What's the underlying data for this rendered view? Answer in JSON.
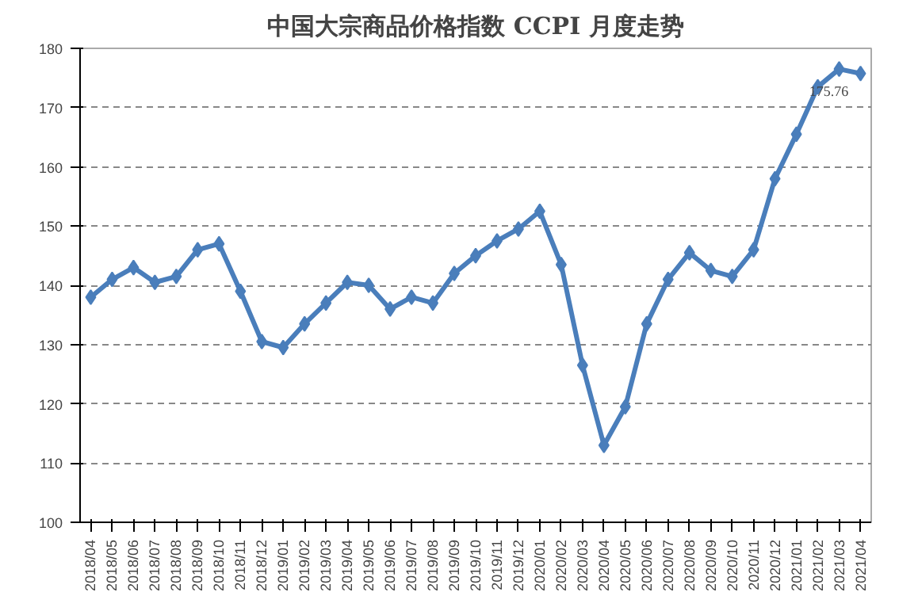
{
  "chart_data": {
    "type": "line",
    "title": "中国大宗商品价格指数 CCPI 月度走势",
    "categories": [
      "2018/04",
      "2018/05",
      "2018/06",
      "2018/07",
      "2018/08",
      "2018/09",
      "2018/10",
      "2018/11",
      "2018/12",
      "2019/01",
      "2019/02",
      "2019/03",
      "2019/04",
      "2019/05",
      "2019/06",
      "2019/07",
      "2019/08",
      "2019/09",
      "2019/10",
      "2019/11",
      "2019/12",
      "2020/01",
      "2020/02",
      "2020/03",
      "2020/04",
      "2020/05",
      "2020/06",
      "2020/07",
      "2020/08",
      "2020/09",
      "2020/10",
      "2020/11",
      "2020/12",
      "2021/01",
      "2021/02",
      "2021/03",
      "2021/04"
    ],
    "series": [
      {
        "color": "#4a7ebb",
        "values": [
          138,
          141,
          143,
          140.5,
          141.5,
          146,
          147,
          139,
          130.5,
          129.5,
          133.5,
          137,
          140.5,
          140,
          136,
          138,
          137,
          142,
          145,
          147.5,
          149.5,
          152.5,
          143.5,
          126.5,
          113,
          119.5,
          133.5,
          141,
          145.5,
          142.5,
          141.5,
          146,
          158,
          165.5,
          173.5,
          176.5,
          175.76
        ],
        "value_labels": [
          null,
          null,
          null,
          null,
          null,
          null,
          null,
          null,
          null,
          null,
          null,
          null,
          null,
          null,
          null,
          null,
          null,
          null,
          null,
          null,
          null,
          null,
          null,
          null,
          null,
          null,
          null,
          null,
          null,
          null,
          null,
          null,
          null,
          null,
          null,
          null,
          "175.76"
        ]
      }
    ],
    "ylim": [
      100,
      180
    ],
    "yticks": [
      100,
      110,
      120,
      130,
      140,
      150,
      160,
      170,
      180
    ],
    "grid": "y",
    "marker": "diamond",
    "line_style": "solid"
  }
}
